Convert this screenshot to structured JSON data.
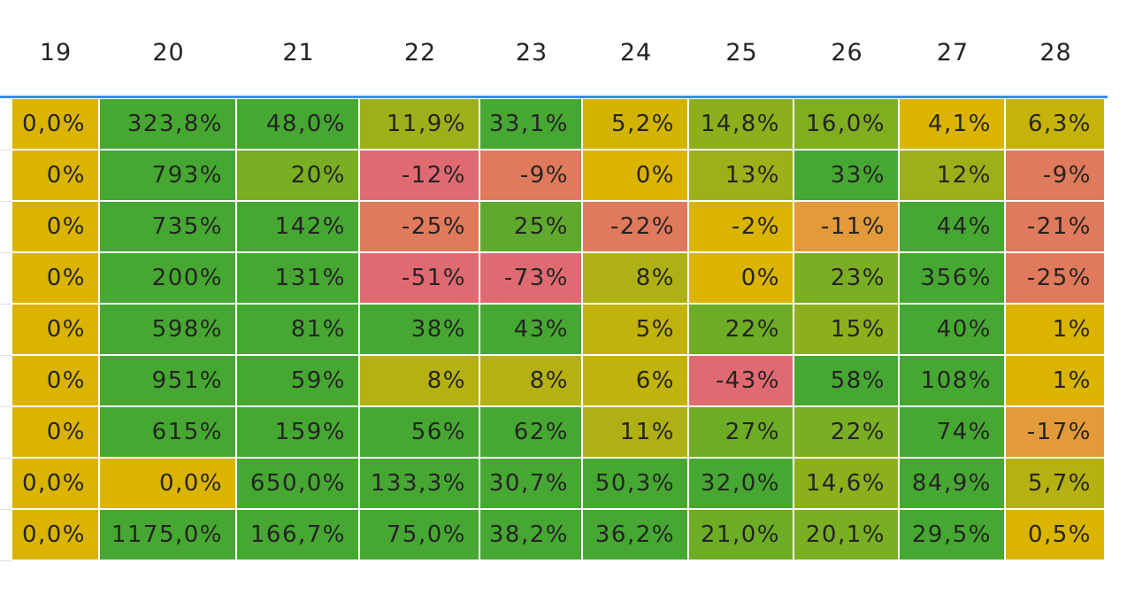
{
  "chart_data": {
    "type": "heatmap",
    "columns": [
      "19",
      "20",
      "21",
      "22",
      "23",
      "24",
      "25",
      "26",
      "27",
      "28"
    ],
    "rows": [
      [
        "0,0%",
        "323,8%",
        "48,0%",
        "11,9%",
        "33,1%",
        "5,2%",
        "14,8%",
        "16,0%",
        "4,1%",
        "6,3%"
      ],
      [
        "0%",
        "793%",
        "20%",
        "-12%",
        "-9%",
        "0%",
        "13%",
        "33%",
        "12%",
        "-9%"
      ],
      [
        "0%",
        "735%",
        "142%",
        "-25%",
        "25%",
        "-22%",
        "-2%",
        "-11%",
        "44%",
        "-21%"
      ],
      [
        "0%",
        "200%",
        "131%",
        "-51%",
        "-73%",
        "8%",
        "0%",
        "23%",
        "356%",
        "-25%"
      ],
      [
        "0%",
        "598%",
        "81%",
        "38%",
        "43%",
        "5%",
        "22%",
        "15%",
        "40%",
        "1%"
      ],
      [
        "0%",
        "951%",
        "59%",
        "8%",
        "8%",
        "6%",
        "-43%",
        "58%",
        "108%",
        "1%"
      ],
      [
        "0%",
        "615%",
        "159%",
        "56%",
        "62%",
        "11%",
        "27%",
        "22%",
        "74%",
        "-17%"
      ],
      [
        "0,0%",
        "0,0%",
        "650,0%",
        "133,3%",
        "30,7%",
        "50,3%",
        "32,0%",
        "14,6%",
        "84,9%",
        "5,7%"
      ],
      [
        "0,0%",
        "1175,0%",
        "166,7%",
        "75,0%",
        "38,2%",
        "36,2%",
        "21,0%",
        "20,1%",
        "29,5%",
        "0,5%"
      ]
    ],
    "colors": [
      [
        "#dbb400",
        "#46a832",
        "#46a832",
        "#9db019",
        "#46a832",
        "#d2b400",
        "#8cb01c",
        "#7fae1f",
        "#dbb400",
        "#c6b30a"
      ],
      [
        "#dbb400",
        "#46a832",
        "#7aae23",
        "#e06a72",
        "#e07a5c",
        "#dbb400",
        "#9db019",
        "#46a832",
        "#9db019",
        "#e07a5c"
      ],
      [
        "#dbb400",
        "#46a832",
        "#46a832",
        "#e07a5c",
        "#5faa2e",
        "#e07a5c",
        "#dbb400",
        "#e39a3a",
        "#46a832",
        "#e07a5c"
      ],
      [
        "#dbb400",
        "#46a832",
        "#46a832",
        "#e06a72",
        "#e06a72",
        "#aeb014",
        "#dbb400",
        "#7aae23",
        "#46a832",
        "#e07a5c"
      ],
      [
        "#dbb400",
        "#46a832",
        "#46a832",
        "#46a832",
        "#46a832",
        "#c2b30c",
        "#6dad26",
        "#8cb01c",
        "#46a832",
        "#dbb400"
      ],
      [
        "#dbb400",
        "#46a832",
        "#46a832",
        "#b4b111",
        "#b4b111",
        "#c2b30c",
        "#e06a72",
        "#46a832",
        "#46a832",
        "#dbb400"
      ],
      [
        "#dbb400",
        "#46a832",
        "#46a832",
        "#46a832",
        "#46a832",
        "#aeb014",
        "#6dad26",
        "#7aae23",
        "#46a832",
        "#e39a3a"
      ],
      [
        "#dbb400",
        "#dbb400",
        "#46a832",
        "#46a832",
        "#46a832",
        "#46a832",
        "#46a832",
        "#8cb01c",
        "#46a832",
        "#b4b111"
      ],
      [
        "#dbb400",
        "#46a832",
        "#46a832",
        "#46a832",
        "#46a832",
        "#46a832",
        "#6dad26",
        "#7aae23",
        "#46a832",
        "#dbb400"
      ]
    ],
    "grid": true
  },
  "colors": {
    "header_line": "#3a8ee6",
    "text": "#252423",
    "row_separator": "#e1e1e1"
  }
}
